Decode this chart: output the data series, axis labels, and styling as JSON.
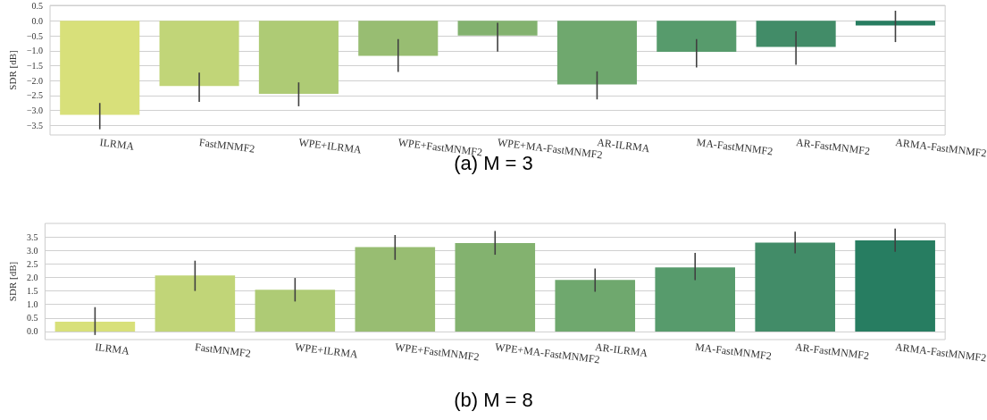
{
  "chart_data": [
    {
      "type": "bar",
      "ylabel": "SDR [dB]",
      "categories": [
        "ILRMA",
        "FastMNMF2",
        "WPE+ILRMA",
        "WPE+FastMNMF2",
        "WPE+MA-FastMNMF2",
        "AR-ILRMA",
        "MA-FastMNMF2",
        "AR-FastMNMF2",
        "ARMA-FastMNMF2"
      ],
      "values": [
        -3.15,
        -2.18,
        -2.44,
        -1.17,
        -0.49,
        -2.13,
        -1.04,
        -0.87,
        -0.15
      ],
      "errors": [
        [
          -3.63,
          -2.75
        ],
        [
          -2.71,
          -1.73
        ],
        [
          -2.86,
          -2.06
        ],
        [
          -1.71,
          -0.61
        ],
        [
          -1.03,
          -0.06
        ],
        [
          -2.63,
          -1.69
        ],
        [
          -1.56,
          -0.61
        ],
        [
          -1.47,
          -0.35
        ],
        [
          -0.71,
          0.34
        ]
      ],
      "colors": [
        "#d8e07a",
        "#c1d578",
        "#aecb75",
        "#98bd72",
        "#83b26f",
        "#6fa86e",
        "#579b6c",
        "#428c68",
        "#277d61"
      ],
      "ylim": [
        -3.82,
        0.52
      ],
      "yticks": [
        -3.5,
        {
          "value": -3,
          "label": "−3.0"
        },
        -2.5,
        {
          "value": -2,
          "label": "−2.0"
        },
        -1.5,
        {
          "value": -1,
          "label": "−1.0"
        },
        -0.5,
        {
          "value": 0,
          "label": "0.0"
        },
        0.5
      ],
      "grid": "y",
      "annotations": [
        "(a) M = 3"
      ]
    },
    {
      "type": "bar",
      "ylabel": "SDR [dB]",
      "categories": [
        "ILRMA",
        "FastMNMF2",
        "WPE+ILRMA",
        "WPE+FastMNMF2",
        "WPE+MA-FastMNMF2",
        "AR-ILRMA",
        "MA-FastMNMF2",
        "AR-FastMNMF2",
        "ARMA-FastMNMF2"
      ],
      "values": [
        0.36,
        2.07,
        1.54,
        3.12,
        3.27,
        1.91,
        2.37,
        3.29,
        3.37
      ],
      "errors": [
        [
          -0.13,
          0.9
        ],
        [
          1.5,
          2.62
        ],
        [
          1.11,
          1.98
        ],
        [
          2.65,
          3.57
        ],
        [
          2.84,
          3.72
        ],
        [
          1.47,
          2.33
        ],
        [
          1.9,
          2.91
        ],
        [
          2.89,
          3.69
        ],
        [
          2.95,
          3.81
        ]
      ],
      "colors": [
        "#d8e07a",
        "#c1d578",
        "#aecb75",
        "#98bd72",
        "#83b26f",
        "#6fa86e",
        "#579b6c",
        "#428c68",
        "#277d61"
      ],
      "ylim": [
        -0.3,
        4.0
      ],
      "yticks": [
        {
          "value": 0,
          "label": "0.0"
        },
        0.5,
        {
          "value": 1,
          "label": "1.0"
        },
        1.5,
        {
          "value": 2,
          "label": "2.0"
        },
        2.5,
        {
          "value": 3,
          "label": "3.0"
        },
        3.5
      ],
      "grid": "y",
      "annotations": [
        "(b) M = 8"
      ]
    }
  ]
}
